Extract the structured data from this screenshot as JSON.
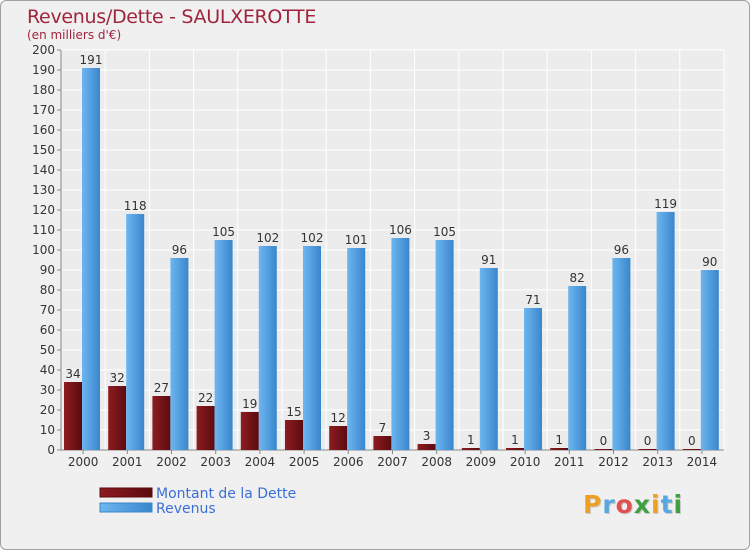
{
  "chart_data": {
    "type": "bar",
    "title": "Revenus/Dette - SAULXEROTTE",
    "subtitle": "(en milliers d'€)",
    "categories": [
      "2000",
      "2001",
      "2002",
      "2003",
      "2004",
      "2005",
      "2006",
      "2007",
      "2008",
      "2009",
      "2010",
      "2011",
      "2012",
      "2013",
      "2014"
    ],
    "series": [
      {
        "name": "Montant de la Dette",
        "color": "#7a1418",
        "values": [
          34,
          32,
          27,
          22,
          19,
          15,
          12,
          7,
          3,
          1,
          1,
          1,
          0,
          0,
          0
        ]
      },
      {
        "name": "Revenus",
        "color": "#4c9fe4",
        "values": [
          191,
          118,
          96,
          105,
          102,
          102,
          101,
          106,
          105,
          91,
          71,
          82,
          96,
          119,
          90
        ]
      }
    ],
    "ylim": [
      0,
      200
    ],
    "yticks": [
      0,
      10,
      20,
      30,
      40,
      50,
      60,
      70,
      80,
      90,
      100,
      110,
      120,
      130,
      140,
      150,
      160,
      170,
      180,
      190,
      200
    ],
    "grid": true,
    "legend": "bottom-left"
  },
  "legend": {
    "dette_label": "Montant de la Dette",
    "revenus_label": "Revenus"
  },
  "logo": {
    "letters": [
      "P",
      "r",
      "o",
      "x",
      "i",
      "t",
      "i"
    ],
    "colors": [
      "#f0a020",
      "#58a8e0",
      "#e05050",
      "#40a040",
      "#f0a020",
      "#58a8e0",
      "#40a040"
    ]
  }
}
